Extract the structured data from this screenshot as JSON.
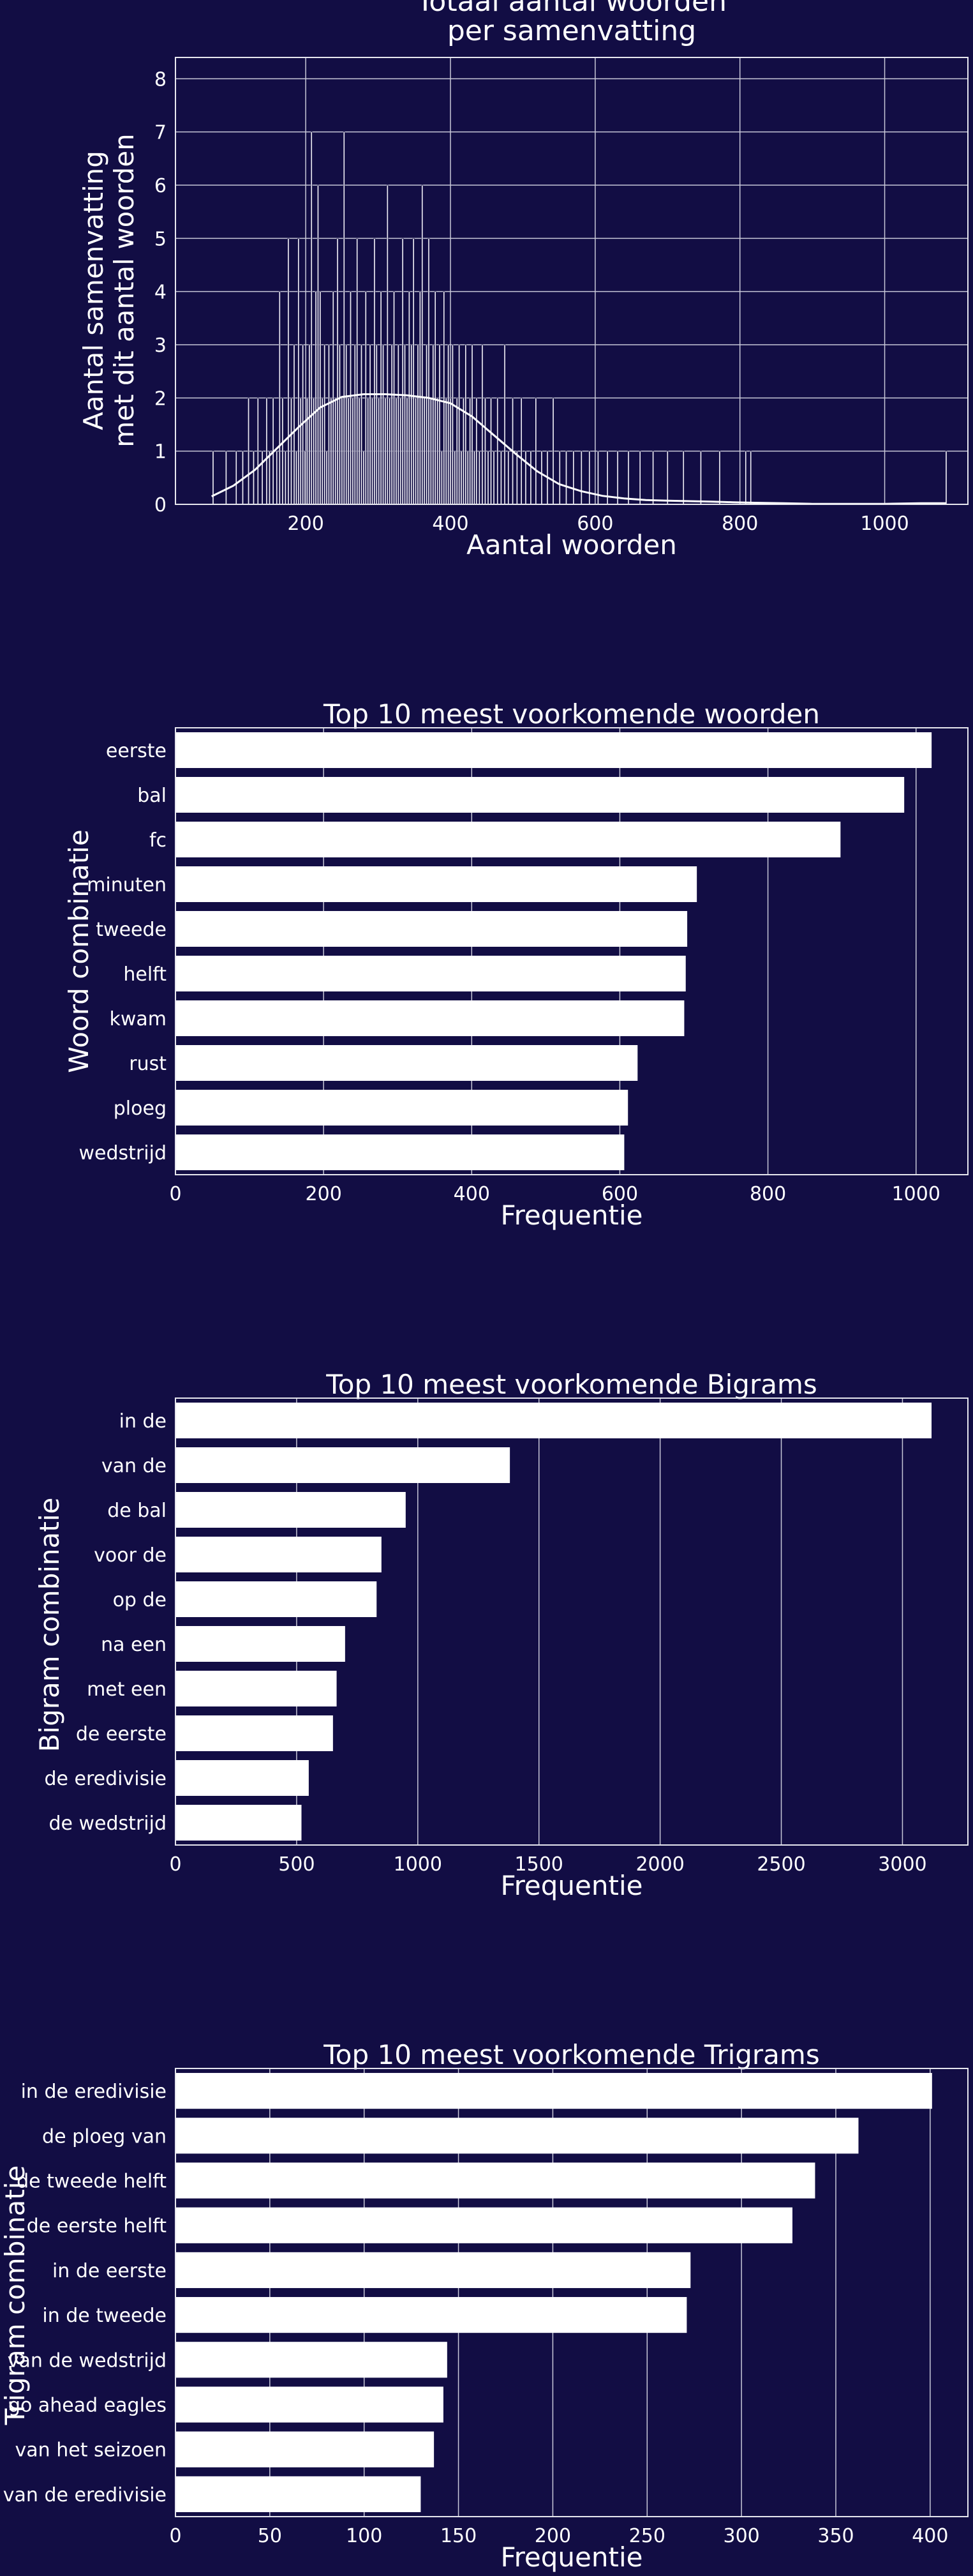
{
  "colors": {
    "background": "#120d44",
    "foreground": "#ffffff",
    "grid": "#c8c8d8"
  },
  "chart_data": [
    {
      "type": "histogram",
      "title": "Totaal aantal woorden\nper samenvatting",
      "xlabel": "Aantal woorden",
      "ylabel": "Aantal samenvatting\nmet dit aantal woorden",
      "xlim": [
        20,
        1115
      ],
      "ylim": [
        0,
        8.4
      ],
      "xticks": [
        200,
        400,
        600,
        800,
        1000
      ],
      "yticks": [
        0,
        1,
        2,
        3,
        4,
        5,
        6,
        7,
        8
      ],
      "grid": true,
      "bins": [
        {
          "x": 72,
          "count": 1
        },
        {
          "x": 90,
          "count": 1
        },
        {
          "x": 104,
          "count": 1
        },
        {
          "x": 113,
          "count": 1
        },
        {
          "x": 121,
          "count": 2
        },
        {
          "x": 128,
          "count": 1
        },
        {
          "x": 134,
          "count": 2
        },
        {
          "x": 140,
          "count": 1
        },
        {
          "x": 146,
          "count": 2
        },
        {
          "x": 150,
          "count": 1
        },
        {
          "x": 155,
          "count": 2
        },
        {
          "x": 160,
          "count": 1
        },
        {
          "x": 164,
          "count": 4
        },
        {
          "x": 168,
          "count": 2
        },
        {
          "x": 172,
          "count": 1
        },
        {
          "x": 176,
          "count": 5
        },
        {
          "x": 180,
          "count": 2
        },
        {
          "x": 184,
          "count": 3
        },
        {
          "x": 187,
          "count": 1
        },
        {
          "x": 190,
          "count": 5
        },
        {
          "x": 193,
          "count": 2
        },
        {
          "x": 196,
          "count": 3
        },
        {
          "x": 199,
          "count": 1
        },
        {
          "x": 202,
          "count": 2
        },
        {
          "x": 205,
          "count": 3
        },
        {
          "x": 208,
          "count": 7
        },
        {
          "x": 211,
          "count": 2
        },
        {
          "x": 214,
          "count": 4
        },
        {
          "x": 217,
          "count": 6
        },
        {
          "x": 220,
          "count": 4
        },
        {
          "x": 223,
          "count": 2
        },
        {
          "x": 226,
          "count": 3
        },
        {
          "x": 229,
          "count": 1
        },
        {
          "x": 232,
          "count": 3
        },
        {
          "x": 235,
          "count": 2
        },
        {
          "x": 238,
          "count": 4
        },
        {
          "x": 241,
          "count": 2
        },
        {
          "x": 244,
          "count": 5
        },
        {
          "x": 247,
          "count": 3
        },
        {
          "x": 250,
          "count": 2
        },
        {
          "x": 253,
          "count": 7
        },
        {
          "x": 256,
          "count": 3
        },
        {
          "x": 259,
          "count": 2
        },
        {
          "x": 262,
          "count": 4
        },
        {
          "x": 265,
          "count": 2
        },
        {
          "x": 268,
          "count": 3
        },
        {
          "x": 271,
          "count": 5
        },
        {
          "x": 274,
          "count": 2
        },
        {
          "x": 277,
          "count": 3
        },
        {
          "x": 280,
          "count": 1
        },
        {
          "x": 283,
          "count": 4
        },
        {
          "x": 286,
          "count": 2
        },
        {
          "x": 289,
          "count": 3
        },
        {
          "x": 292,
          "count": 2
        },
        {
          "x": 295,
          "count": 5
        },
        {
          "x": 298,
          "count": 3
        },
        {
          "x": 301,
          "count": 2
        },
        {
          "x": 304,
          "count": 4
        },
        {
          "x": 307,
          "count": 3
        },
        {
          "x": 310,
          "count": 2
        },
        {
          "x": 313,
          "count": 6
        },
        {
          "x": 316,
          "count": 2
        },
        {
          "x": 319,
          "count": 3
        },
        {
          "x": 322,
          "count": 4
        },
        {
          "x": 325,
          "count": 2
        },
        {
          "x": 328,
          "count": 3
        },
        {
          "x": 331,
          "count": 2
        },
        {
          "x": 334,
          "count": 5
        },
        {
          "x": 337,
          "count": 3
        },
        {
          "x": 340,
          "count": 2
        },
        {
          "x": 343,
          "count": 4
        },
        {
          "x": 346,
          "count": 3
        },
        {
          "x": 349,
          "count": 5
        },
        {
          "x": 352,
          "count": 2
        },
        {
          "x": 355,
          "count": 3
        },
        {
          "x": 358,
          "count": 4
        },
        {
          "x": 361,
          "count": 6
        },
        {
          "x": 364,
          "count": 2
        },
        {
          "x": 367,
          "count": 3
        },
        {
          "x": 370,
          "count": 5
        },
        {
          "x": 373,
          "count": 2
        },
        {
          "x": 376,
          "count": 3
        },
        {
          "x": 379,
          "count": 4
        },
        {
          "x": 382,
          "count": 2
        },
        {
          "x": 385,
          "count": 3
        },
        {
          "x": 388,
          "count": 1
        },
        {
          "x": 391,
          "count": 4
        },
        {
          "x": 394,
          "count": 2
        },
        {
          "x": 397,
          "count": 3
        },
        {
          "x": 400,
          "count": 2
        },
        {
          "x": 403,
          "count": 3
        },
        {
          "x": 406,
          "count": 1
        },
        {
          "x": 409,
          "count": 2
        },
        {
          "x": 412,
          "count": 3
        },
        {
          "x": 415,
          "count": 1
        },
        {
          "x": 418,
          "count": 2
        },
        {
          "x": 421,
          "count": 3
        },
        {
          "x": 424,
          "count": 1
        },
        {
          "x": 427,
          "count": 2
        },
        {
          "x": 430,
          "count": 3
        },
        {
          "x": 433,
          "count": 1
        },
        {
          "x": 436,
          "count": 2
        },
        {
          "x": 440,
          "count": 1
        },
        {
          "x": 444,
          "count": 3
        },
        {
          "x": 448,
          "count": 2
        },
        {
          "x": 452,
          "count": 1
        },
        {
          "x": 456,
          "count": 2
        },
        {
          "x": 460,
          "count": 1
        },
        {
          "x": 465,
          "count": 2
        },
        {
          "x": 470,
          "count": 1
        },
        {
          "x": 475,
          "count": 3
        },
        {
          "x": 480,
          "count": 1
        },
        {
          "x": 486,
          "count": 2
        },
        {
          "x": 492,
          "count": 1
        },
        {
          "x": 498,
          "count": 2
        },
        {
          "x": 504,
          "count": 1
        },
        {
          "x": 511,
          "count": 1
        },
        {
          "x": 518,
          "count": 2
        },
        {
          "x": 526,
          "count": 1
        },
        {
          "x": 534,
          "count": 1
        },
        {
          "x": 542,
          "count": 2
        },
        {
          "x": 551,
          "count": 1
        },
        {
          "x": 560,
          "count": 1
        },
        {
          "x": 570,
          "count": 1
        },
        {
          "x": 581,
          "count": 1
        },
        {
          "x": 592,
          "count": 1
        },
        {
          "x": 604,
          "count": 1
        },
        {
          "x": 617,
          "count": 1
        },
        {
          "x": 631,
          "count": 1
        },
        {
          "x": 646,
          "count": 1
        },
        {
          "x": 662,
          "count": 1
        },
        {
          "x": 680,
          "count": 1
        },
        {
          "x": 700,
          "count": 1
        },
        {
          "x": 722,
          "count": 1
        },
        {
          "x": 746,
          "count": 1
        },
        {
          "x": 772,
          "count": 1
        },
        {
          "x": 808,
          "count": 1
        },
        {
          "x": 815,
          "count": 1
        },
        {
          "x": 1085,
          "count": 1
        }
      ],
      "bin_width": 2,
      "kde": {
        "x": [
          70,
          100,
          130,
          160,
          190,
          220,
          250,
          280,
          310,
          340,
          370,
          400,
          430,
          460,
          490,
          520,
          550,
          580,
          610,
          640,
          670,
          700,
          730,
          760,
          790,
          820,
          860,
          900,
          950,
          1000,
          1050,
          1085
        ],
        "y": [
          0.15,
          0.35,
          0.65,
          1.05,
          1.45,
          1.82,
          2.02,
          2.07,
          2.07,
          2.05,
          2.0,
          1.9,
          1.65,
          1.3,
          0.95,
          0.62,
          0.38,
          0.25,
          0.16,
          0.11,
          0.08,
          0.07,
          0.06,
          0.05,
          0.04,
          0.03,
          0.02,
          0.01,
          0.01,
          0.01,
          0.02,
          0.02
        ]
      }
    },
    {
      "type": "bar",
      "orientation": "horizontal",
      "title": "Top 10 meest voorkomende woorden",
      "xlabel": "Frequentie",
      "ylabel": "Woord combinatie",
      "xlim": [
        0,
        1070
      ],
      "xticks": [
        0,
        200,
        400,
        600,
        800,
        1000
      ],
      "grid": true,
      "categories": [
        "eerste",
        "bal",
        "fc",
        "minuten",
        "tweede",
        "helft",
        "kwam",
        "rust",
        "ploeg",
        "wedstrijd"
      ],
      "values": [
        1021,
        984,
        898,
        704,
        691,
        689,
        687,
        624,
        611,
        606
      ]
    },
    {
      "type": "bar",
      "orientation": "horizontal",
      "title": "Top 10 meest voorkomende Bigrams",
      "xlabel": "Frequentie",
      "ylabel": "Bigram combinatie",
      "xlim": [
        0,
        3270
      ],
      "xticks": [
        0,
        500,
        1000,
        1500,
        2000,
        2500,
        3000
      ],
      "grid": true,
      "categories": [
        "in de",
        "van de",
        "de bal",
        "voor de",
        "op de",
        "na een",
        "met een",
        "de eerste",
        "de eredivisie",
        "de wedstrijd"
      ],
      "values": [
        3120,
        1380,
        950,
        850,
        830,
        700,
        665,
        650,
        550,
        520
      ]
    },
    {
      "type": "bar",
      "orientation": "horizontal",
      "title": "Top 10 meest voorkomende Trigrams",
      "xlabel": "Frequentie",
      "ylabel": "Trigram combinatie",
      "xlim": [
        0,
        420
      ],
      "xticks": [
        0,
        50,
        100,
        150,
        200,
        250,
        300,
        350,
        400
      ],
      "grid": true,
      "categories": [
        "in de eredivisie",
        "de ploeg van",
        "de tweede helft",
        "de eerste helft",
        "in de eerste",
        "in de tweede",
        "van de wedstrijd",
        "go ahead eagles",
        "van het seizoen",
        "van de eredivisie"
      ],
      "values": [
        401,
        362,
        339,
        327,
        273,
        271,
        144,
        142,
        137,
        130
      ]
    }
  ]
}
